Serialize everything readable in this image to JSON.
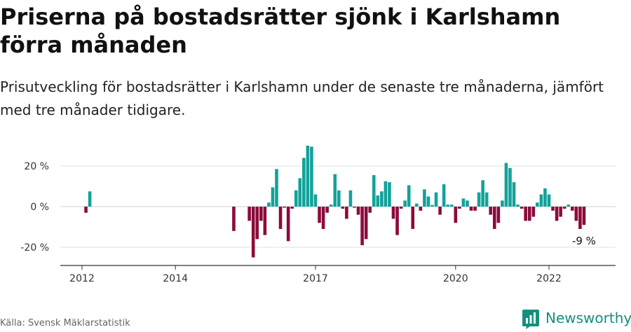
{
  "title": "Priserna på bostadsrätter sjönk i Karlshamn förra månaden",
  "subtitle": "Prisutveckling för bostadsrätter i Karlshamn under de senaste tre månaderna, jämfört med tre månader tidigare.",
  "source": "Källa: Svensk Mäklarstatistik",
  "brand": "Newsworthy",
  "colors": {
    "positive": "#12a29a",
    "negative": "#8c0a3c",
    "brand": "#15907d"
  },
  "chart_data": {
    "type": "bar",
    "unit": "%",
    "x_unit": "date (year-month)",
    "ylim": [
      -28,
      34
    ],
    "yticks": [
      {
        "value": 20,
        "label": "20 %"
      },
      {
        "value": 0,
        "label": "0 %"
      },
      {
        "value": -20,
        "label": "-20 %"
      }
    ],
    "xticks": [
      {
        "date": "2012-01",
        "label": "2012"
      },
      {
        "date": "2014-01",
        "label": "2014"
      },
      {
        "date": "2017-01",
        "label": "2017"
      },
      {
        "date": "2020-01",
        "label": "2020"
      },
      {
        "date": "2022-01",
        "label": "2022"
      }
    ],
    "grid": "horizontal",
    "bars": [
      {
        "date": "2012-02",
        "value": -3
      },
      {
        "date": "2012-03",
        "value": 7.5
      },
      {
        "date": "2015-04",
        "value": -12
      },
      {
        "date": "2015-08",
        "value": -7
      },
      {
        "date": "2015-09",
        "value": -25
      },
      {
        "date": "2015-10",
        "value": -16
      },
      {
        "date": "2015-11",
        "value": -7
      },
      {
        "date": "2015-12",
        "value": -14
      },
      {
        "date": "2016-01",
        "value": 2
      },
      {
        "date": "2016-02",
        "value": 9.5
      },
      {
        "date": "2016-03",
        "value": 18.5
      },
      {
        "date": "2016-04",
        "value": -11
      },
      {
        "date": "2016-05",
        "value": -0.5
      },
      {
        "date": "2016-06",
        "value": -17
      },
      {
        "date": "2016-07",
        "value": -1
      },
      {
        "date": "2016-08",
        "value": 8
      },
      {
        "date": "2016-09",
        "value": 14
      },
      {
        "date": "2016-10",
        "value": 24
      },
      {
        "date": "2016-11",
        "value": 30
      },
      {
        "date": "2016-12",
        "value": 29.5
      },
      {
        "date": "2017-01",
        "value": 6
      },
      {
        "date": "2017-02",
        "value": -8
      },
      {
        "date": "2017-03",
        "value": -11
      },
      {
        "date": "2017-04",
        "value": -3
      },
      {
        "date": "2017-05",
        "value": 1
      },
      {
        "date": "2017-06",
        "value": 16
      },
      {
        "date": "2017-07",
        "value": 8
      },
      {
        "date": "2017-08",
        "value": -1
      },
      {
        "date": "2017-09",
        "value": -6
      },
      {
        "date": "2017-10",
        "value": 8
      },
      {
        "date": "2017-11",
        "value": -0.5
      },
      {
        "date": "2017-12",
        "value": -4
      },
      {
        "date": "2018-01",
        "value": -19
      },
      {
        "date": "2018-02",
        "value": -16
      },
      {
        "date": "2018-03",
        "value": -3
      },
      {
        "date": "2018-04",
        "value": 15.5
      },
      {
        "date": "2018-05",
        "value": 5.5
      },
      {
        "date": "2018-06",
        "value": 7.5
      },
      {
        "date": "2018-07",
        "value": 12.5
      },
      {
        "date": "2018-08",
        "value": 12
      },
      {
        "date": "2018-09",
        "value": -6
      },
      {
        "date": "2018-10",
        "value": -14
      },
      {
        "date": "2018-11",
        "value": -1
      },
      {
        "date": "2018-12",
        "value": 3
      },
      {
        "date": "2019-01",
        "value": 10.5
      },
      {
        "date": "2019-02",
        "value": -11
      },
      {
        "date": "2019-03",
        "value": 1.5
      },
      {
        "date": "2019-04",
        "value": -2
      },
      {
        "date": "2019-05",
        "value": 8.5
      },
      {
        "date": "2019-06",
        "value": 5
      },
      {
        "date": "2019-07",
        "value": 0.8
      },
      {
        "date": "2019-08",
        "value": 7
      },
      {
        "date": "2019-09",
        "value": -4
      },
      {
        "date": "2019-10",
        "value": 11
      },
      {
        "date": "2019-11",
        "value": 1
      },
      {
        "date": "2019-12",
        "value": 1
      },
      {
        "date": "2020-01",
        "value": -8
      },
      {
        "date": "2020-02",
        "value": -1
      },
      {
        "date": "2020-03",
        "value": 4
      },
      {
        "date": "2020-04",
        "value": 3
      },
      {
        "date": "2020-05",
        "value": -2
      },
      {
        "date": "2020-06",
        "value": -2
      },
      {
        "date": "2020-07",
        "value": 7
      },
      {
        "date": "2020-08",
        "value": 13
      },
      {
        "date": "2020-09",
        "value": 7
      },
      {
        "date": "2020-10",
        "value": -4
      },
      {
        "date": "2020-11",
        "value": -11
      },
      {
        "date": "2020-12",
        "value": -8
      },
      {
        "date": "2021-01",
        "value": 3
      },
      {
        "date": "2021-02",
        "value": 21.5
      },
      {
        "date": "2021-03",
        "value": 19
      },
      {
        "date": "2021-04",
        "value": 12
      },
      {
        "date": "2021-05",
        "value": 1
      },
      {
        "date": "2021-06",
        "value": -1
      },
      {
        "date": "2021-07",
        "value": -7
      },
      {
        "date": "2021-08",
        "value": -7
      },
      {
        "date": "2021-09",
        "value": -5
      },
      {
        "date": "2021-10",
        "value": 2
      },
      {
        "date": "2021-11",
        "value": 6
      },
      {
        "date": "2021-12",
        "value": 9
      },
      {
        "date": "2022-01",
        "value": 6
      },
      {
        "date": "2022-02",
        "value": -2
      },
      {
        "date": "2022-03",
        "value": -7
      },
      {
        "date": "2022-04",
        "value": -5
      },
      {
        "date": "2022-05",
        "value": -1
      },
      {
        "date": "2022-06",
        "value": 1
      },
      {
        "date": "2022-07",
        "value": -2
      },
      {
        "date": "2022-08",
        "value": -7
      },
      {
        "date": "2022-09",
        "value": -11
      },
      {
        "date": "2022-10",
        "value": -9
      }
    ],
    "annotation": {
      "date": "2022-10",
      "value": -9,
      "label": "-9 %"
    }
  }
}
